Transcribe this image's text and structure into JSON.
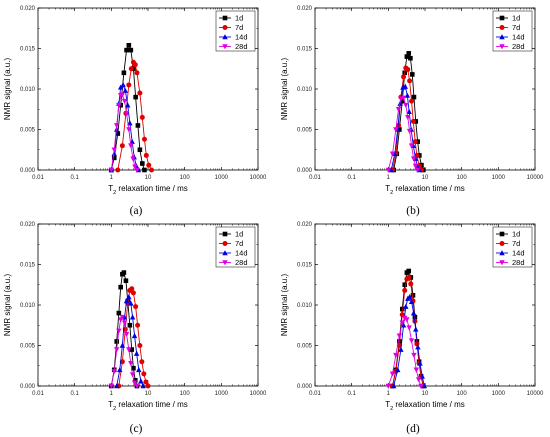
{
  "figure": {
    "captions": [
      "(a)",
      "(b)",
      "(c)",
      "(d)"
    ]
  },
  "axes": {
    "xlabel_main": "T",
    "xlabel_sub": "2",
    "xlabel_rest": " relaxation time / ms",
    "ylabel": "NMR signal (a.u.)",
    "xscale": "log",
    "xlim": [
      0.01,
      10000
    ],
    "ylim": [
      0,
      0.02
    ],
    "xticks": [
      "0.01",
      "0.1",
      "1",
      "10",
      "100",
      "1000",
      "10000"
    ],
    "yticks": [
      "0.000",
      "0.005",
      "0.010",
      "0.015",
      "0.020"
    ]
  },
  "legend": {
    "entries": [
      "1d",
      "7d",
      "14d",
      "28d"
    ],
    "colors": [
      "#000000",
      "#e00000",
      "#0000e0",
      "#e000e0"
    ],
    "markers": [
      "square",
      "circle",
      "triangle-up",
      "triangle-down"
    ],
    "placement": "top-right"
  },
  "chart_data": [
    {
      "type": "line",
      "panel": "(a)",
      "xscale": "log",
      "xlim": [
        0.01,
        10000
      ],
      "ylim": [
        0,
        0.02
      ],
      "series": [
        {
          "name": "1d",
          "x": [
            1.0,
            1.2,
            1.5,
            1.8,
            2.2,
            2.6,
            3.0,
            3.4,
            4.0,
            4.6,
            5.3,
            6.0,
            7.0,
            8.0
          ],
          "y": [
            0.0,
            0.0015,
            0.0045,
            0.008,
            0.012,
            0.0148,
            0.0154,
            0.0148,
            0.0125,
            0.009,
            0.0055,
            0.0025,
            0.0008,
            0.0
          ]
        },
        {
          "name": "7d",
          "x": [
            1.5,
            2.0,
            2.5,
            3.0,
            3.5,
            4.0,
            4.5,
            5.0,
            6.0,
            7.0,
            8.0,
            9.0,
            10.5,
            12.5
          ],
          "y": [
            0.0,
            0.003,
            0.007,
            0.0105,
            0.0125,
            0.0133,
            0.013,
            0.012,
            0.0095,
            0.0065,
            0.0038,
            0.0018,
            0.0006,
            0.0
          ]
        },
        {
          "name": "14d",
          "x": [
            1.0,
            1.2,
            1.4,
            1.6,
            1.8,
            2.1,
            2.4,
            2.8,
            3.2,
            3.7,
            4.2,
            4.8,
            5.5
          ],
          "y": [
            0.0,
            0.002,
            0.005,
            0.0082,
            0.0102,
            0.0105,
            0.0098,
            0.008,
            0.0058,
            0.0035,
            0.0016,
            0.0005,
            0.0
          ]
        },
        {
          "name": "28d",
          "x": [
            1.0,
            1.2,
            1.4,
            1.6,
            1.8,
            2.0,
            2.3,
            2.6,
            3.0,
            3.4,
            3.9,
            4.4,
            5.0
          ],
          "y": [
            0.0,
            0.0025,
            0.0055,
            0.008,
            0.0092,
            0.0093,
            0.0085,
            0.007,
            0.005,
            0.003,
            0.0014,
            0.0004,
            0.0
          ]
        }
      ]
    },
    {
      "type": "line",
      "panel": "(b)",
      "xscale": "log",
      "xlim": [
        0.01,
        10000
      ],
      "ylim": [
        0,
        0.02
      ],
      "series": [
        {
          "name": "1d",
          "x": [
            1.4,
            1.7,
            2.0,
            2.4,
            2.8,
            3.2,
            3.6,
            4.0,
            4.5,
            5.0,
            5.6,
            6.3,
            7.0,
            8.0,
            9.0
          ],
          "y": [
            0.0,
            0.002,
            0.005,
            0.0085,
            0.012,
            0.014,
            0.0144,
            0.0138,
            0.0118,
            0.009,
            0.006,
            0.0035,
            0.0018,
            0.0006,
            0.0
          ]
        },
        {
          "name": "7d",
          "x": [
            1.3,
            1.6,
            1.9,
            2.2,
            2.6,
            3.0,
            3.4,
            3.8,
            4.3,
            4.8,
            5.4,
            6.0,
            7.0,
            8.0
          ],
          "y": [
            0.0,
            0.002,
            0.0055,
            0.009,
            0.0115,
            0.0126,
            0.0124,
            0.011,
            0.0085,
            0.006,
            0.0035,
            0.0018,
            0.0005,
            0.0
          ]
        },
        {
          "name": "14d",
          "x": [
            1.2,
            1.5,
            1.8,
            2.1,
            2.5,
            2.9,
            3.3,
            3.7,
            4.2,
            4.8,
            5.5,
            6.3,
            7.0
          ],
          "y": [
            0.0,
            0.002,
            0.005,
            0.0082,
            0.0102,
            0.0103,
            0.0092,
            0.0072,
            0.005,
            0.003,
            0.0014,
            0.0004,
            0.0
          ]
        },
        {
          "name": "28d",
          "x": [
            1.0,
            1.3,
            1.6,
            1.9,
            2.2,
            2.6,
            3.0,
            3.4,
            3.8,
            4.3,
            4.9,
            5.5,
            6.2
          ],
          "y": [
            0.0,
            0.002,
            0.005,
            0.0075,
            0.0088,
            0.0089,
            0.008,
            0.0065,
            0.0048,
            0.003,
            0.0014,
            0.0005,
            0.0
          ]
        }
      ]
    },
    {
      "type": "line",
      "panel": "(c)",
      "xscale": "log",
      "xlim": [
        0.01,
        10000
      ],
      "ylim": [
        0,
        0.02
      ],
      "series": [
        {
          "name": "1d",
          "x": [
            1.0,
            1.2,
            1.4,
            1.6,
            1.8,
            2.0,
            2.2,
            2.5,
            2.8,
            3.2,
            3.6,
            4.0,
            4.5,
            5.0
          ],
          "y": [
            0.0,
            0.002,
            0.0055,
            0.009,
            0.0122,
            0.0138,
            0.014,
            0.013,
            0.0105,
            0.0075,
            0.0045,
            0.0022,
            0.0007,
            0.0
          ]
        },
        {
          "name": "7d",
          "x": [
            1.6,
            2.0,
            2.4,
            2.8,
            3.2,
            3.6,
            4.0,
            4.6,
            5.2,
            6.0,
            6.8,
            7.7,
            8.8,
            10.0
          ],
          "y": [
            0.0,
            0.003,
            0.007,
            0.0102,
            0.0118,
            0.012,
            0.0115,
            0.0098,
            0.0075,
            0.005,
            0.003,
            0.0015,
            0.0005,
            0.0
          ]
        },
        {
          "name": "14d",
          "x": [
            1.4,
            1.7,
            2.0,
            2.3,
            2.6,
            3.0,
            3.4,
            3.8,
            4.3,
            4.9,
            5.6,
            6.4,
            7.4
          ],
          "y": [
            0.0,
            0.002,
            0.005,
            0.0085,
            0.0105,
            0.011,
            0.0102,
            0.0085,
            0.0062,
            0.004,
            0.002,
            0.0006,
            0.0
          ]
        },
        {
          "name": "28d",
          "x": [
            1.0,
            1.2,
            1.4,
            1.6,
            1.8,
            2.0,
            2.3,
            2.6,
            3.0,
            3.4,
            3.8,
            4.3,
            5.0
          ],
          "y": [
            0.0,
            0.0018,
            0.0045,
            0.0068,
            0.0082,
            0.0085,
            0.0078,
            0.0064,
            0.0045,
            0.0028,
            0.0014,
            0.0004,
            0.0
          ]
        }
      ]
    },
    {
      "type": "line",
      "panel": "(d)",
      "xscale": "log",
      "xlim": [
        0.01,
        10000
      ],
      "ylim": [
        0,
        0.02
      ],
      "series": [
        {
          "name": "1d",
          "x": [
            1.3,
            1.6,
            2.0,
            2.4,
            2.8,
            3.2,
            3.6,
            4.1,
            4.7,
            5.3,
            6.0,
            6.9,
            7.8,
            9.0
          ],
          "y": [
            0.0,
            0.002,
            0.0055,
            0.0095,
            0.0125,
            0.014,
            0.0142,
            0.0134,
            0.0112,
            0.0085,
            0.0055,
            0.003,
            0.0012,
            0.0
          ]
        },
        {
          "name": "7d",
          "x": [
            1.3,
            1.6,
            2.0,
            2.4,
            2.8,
            3.2,
            3.6,
            4.1,
            4.7,
            5.3,
            6.0,
            6.9,
            7.8,
            9.0
          ],
          "y": [
            0.0,
            0.0018,
            0.005,
            0.0088,
            0.0118,
            0.0132,
            0.0134,
            0.0126,
            0.0105,
            0.008,
            0.0052,
            0.0028,
            0.0011,
            0.0
          ]
        },
        {
          "name": "14d",
          "x": [
            1.4,
            1.8,
            2.2,
            2.6,
            3.0,
            3.4,
            3.8,
            4.3,
            4.9,
            5.6,
            6.4,
            7.3,
            8.4,
            9.6
          ],
          "y": [
            0.0,
            0.002,
            0.0045,
            0.0075,
            0.0098,
            0.0108,
            0.011,
            0.0104,
            0.009,
            0.007,
            0.0048,
            0.0028,
            0.0012,
            0.0
          ]
        },
        {
          "name": "28d",
          "x": [
            1.0,
            1.3,
            1.6,
            2.0,
            2.4,
            2.8,
            3.2,
            3.7,
            4.3,
            5.0,
            5.8,
            6.7,
            7.7
          ],
          "y": [
            0.0,
            0.0015,
            0.0038,
            0.0062,
            0.0078,
            0.0084,
            0.0082,
            0.0072,
            0.0056,
            0.0038,
            0.002,
            0.0008,
            0.0
          ]
        }
      ]
    }
  ]
}
